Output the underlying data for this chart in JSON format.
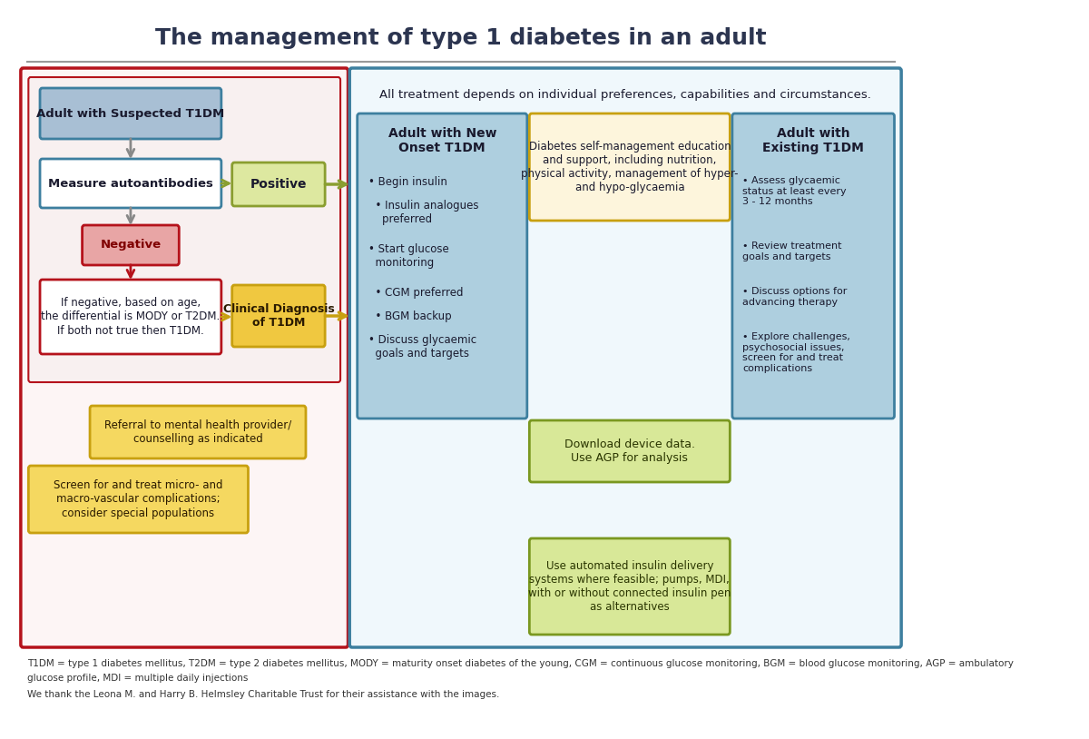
{
  "title": "The management of type 1 diabetes in an adult",
  "title_fontsize": 18,
  "title_color": "#2c3550",
  "background_color": "#ffffff",
  "footnote1": "T1DM = type 1 diabetes mellitus, T2DM = type 2 diabetes mellitus, MODY = maturity onset diabetes of the young, CGM = continuous glucose monitoring, BGM = blood glucose monitoring, AGP = ambulatory",
  "footnote2": "glucose profile, MDI = multiple daily injections",
  "footnote3": "We thank the Leona M. and Harry B. Helmsley Charitable Trust for their assistance with the images.",
  "left_panel_border": "#b5121b",
  "right_panel_border": "#3d7f9f",
  "box_suspected_bg": "#a8bfd4",
  "box_suspected_border": "#3d7f9f",
  "box_suspected_text": "Adult with Suspected T1DM",
  "box_measure_bg": "#ffffff",
  "box_measure_border": "#3d7f9f",
  "box_measure_text": "Measure autoantibodies",
  "box_positive_bg": "#dde8a0",
  "box_positive_border": "#8a9e30",
  "box_positive_text": "Positive",
  "box_negative_bg": "#e8a5a5",
  "box_negative_border": "#b5121b",
  "box_negative_text": "Negative",
  "box_if_negative_bg": "#ffffff",
  "box_if_negative_border": "#b5121b",
  "box_if_negative_text": "If negative, based on age,\nthe differential is MODY or T2DM.\nIf both not true then T1DM.",
  "box_clinical_bg": "#f0c840",
  "box_clinical_border": "#c8a010",
  "box_clinical_text": "Clinical Diagnosis\nof T1DM",
  "box_mental_bg": "#f5d860",
  "box_mental_border": "#c8a010",
  "box_mental_text": "Referral to mental health provider/\ncounselling as indicated",
  "box_screen_bg": "#f5d860",
  "box_screen_border": "#c8a010",
  "box_screen_text": "Screen for and treat micro- and\nmacro-vascular complications;\nconsider special populations",
  "right_header_text": "All treatment depends on individual preferences, capabilities and circumstances.",
  "box_new_onset_bg": "#aecfdf",
  "box_new_onset_border": "#3d7f9f",
  "box_new_onset_title": "Adult with New\nOnset T1DM",
  "box_existing_bg": "#aecfdf",
  "box_existing_border": "#3d7f9f",
  "box_existing_title": "Adult with\nExisting T1DM",
  "box_dsmes_bg": "#fdf5dc",
  "box_dsmes_border": "#c8a010",
  "box_dsmes_text": "Diabetes self-management education\nand support, including nutrition,\nphysical activity, management of hyper-\nand hypo-glycaemia",
  "box_download_bg": "#d8e898",
  "box_download_border": "#7a9820",
  "box_download_text": "Download device data.\nUse AGP for analysis",
  "box_ais_bg": "#d8e898",
  "box_ais_border": "#7a9820",
  "box_ais_text": "Use automated insulin delivery\nsystems where feasible; pumps, MDI,\nwith or without connected insulin pen\nas alternatives",
  "arrow_gray": "#888888",
  "arrow_red": "#b5121b",
  "arrow_olive": "#8a9e30",
  "arrow_gold": "#c8a010",
  "text_dark": "#1a1a2e",
  "text_dark2": "#2a2a00"
}
